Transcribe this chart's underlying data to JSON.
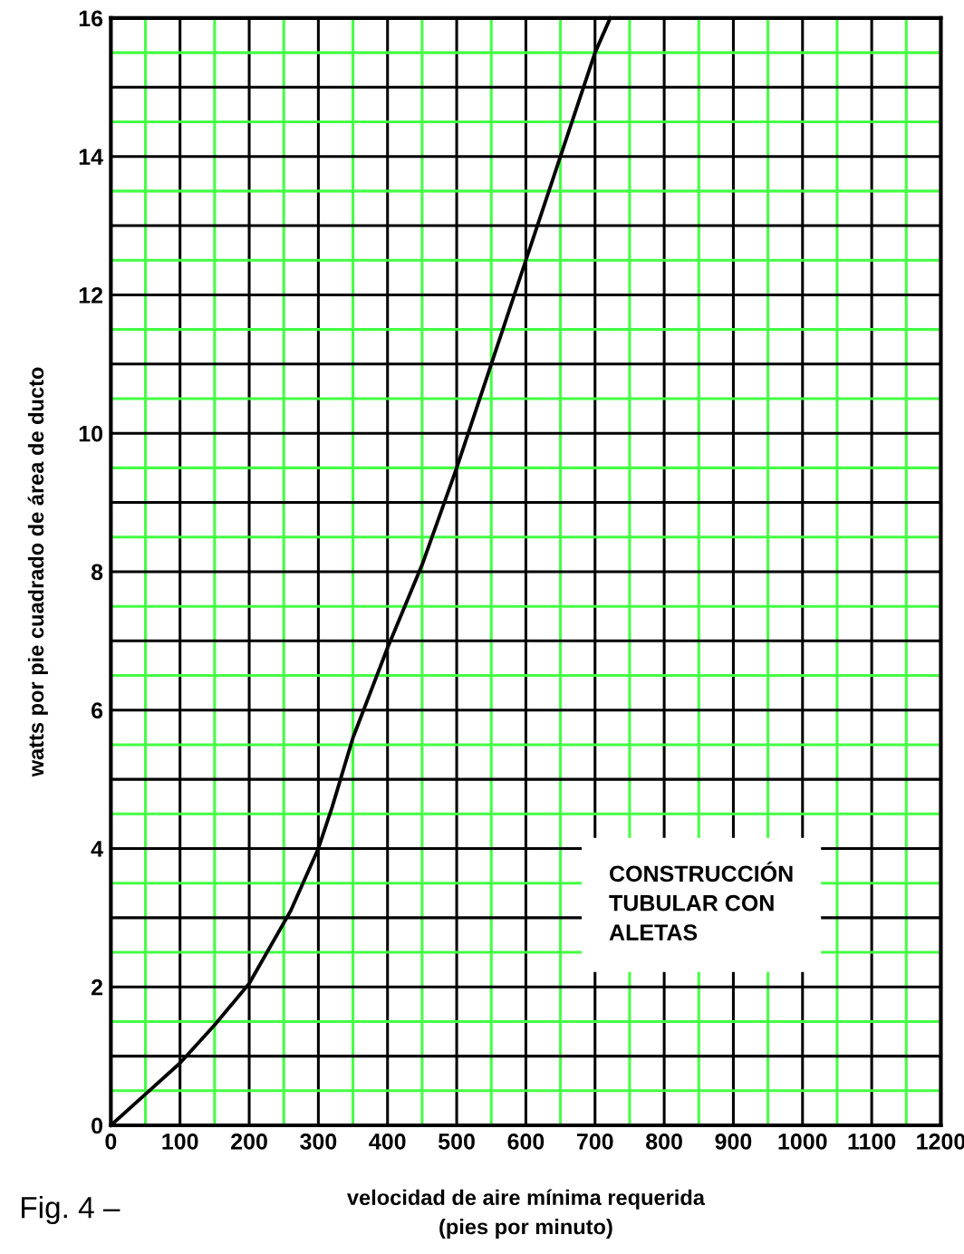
{
  "chart_data": {
    "type": "line",
    "xlabel": "velocidad de aire mínima requerida\n(pies por minuto)",
    "ylabel": "watts por pie cuadrado de área de ducto",
    "series": [
      {
        "color": "#000000",
        "x": [
          0,
          50,
          100,
          150,
          200,
          260,
          300,
          320,
          350,
          400,
          450,
          500,
          550,
          600,
          650,
          700,
          722
        ],
        "values": [
          0,
          0.45,
          0.9,
          1.45,
          2.05,
          3.1,
          4.0,
          4.6,
          5.6,
          6.9,
          8.1,
          9.5,
          11.0,
          12.5,
          14.0,
          15.5,
          16.0
        ]
      }
    ],
    "xlim": [
      0,
      1200
    ],
    "ylim": [
      0,
      16
    ],
    "xticks": [
      0,
      {
        "value": 50,
        "label": null
      },
      100,
      {
        "value": 150,
        "label": null
      },
      200,
      {
        "value": 250,
        "label": null
      },
      300,
      {
        "value": 350,
        "label": null
      },
      400,
      {
        "value": 450,
        "label": null
      },
      500,
      {
        "value": 550,
        "label": null
      },
      600,
      {
        "value": 650,
        "label": null
      },
      700,
      {
        "value": 750,
        "label": null
      },
      800,
      {
        "value": 850,
        "label": null
      },
      900,
      {
        "value": 950,
        "label": null
      },
      1000,
      {
        "value": 1050,
        "label": null
      },
      1100,
      {
        "value": 1150,
        "label": null
      },
      1200
    ],
    "yticks": [
      0,
      {
        "value": 0.5,
        "label": null
      },
      {
        "value": 1,
        "label": null
      },
      {
        "value": 1.5,
        "label": null
      },
      2,
      {
        "value": 2.5,
        "label": null
      },
      {
        "value": 3,
        "label": null
      },
      {
        "value": 3.5,
        "label": null
      },
      4,
      {
        "value": 4.5,
        "label": null
      },
      {
        "value": 5,
        "label": null
      },
      {
        "value": 5.5,
        "label": null
      },
      6,
      {
        "value": 6.5,
        "label": null
      },
      {
        "value": 7,
        "label": null
      },
      {
        "value": 7.5,
        "label": null
      },
      8,
      {
        "value": 8.5,
        "label": null
      },
      {
        "value": 9,
        "label": null
      },
      {
        "value": 9.5,
        "label": null
      },
      10,
      {
        "value": 10.5,
        "label": null
      },
      {
        "value": 11,
        "label": null
      },
      {
        "value": 11.5,
        "label": null
      },
      12,
      {
        "value": 12.5,
        "label": null
      },
      {
        "value": 13,
        "label": null
      },
      {
        "value": 13.5,
        "label": null
      },
      14,
      {
        "value": 14.5,
        "label": null
      },
      {
        "value": 15,
        "label": null
      },
      {
        "value": 15.5,
        "label": null
      },
      16
    ],
    "grid": true,
    "marker": "none",
    "line_style": "solid",
    "annotations": [
      "CONSTRUCCIÓN\nTUBULAR CON\nALETAS",
      "Fig. 4 –"
    ]
  }
}
